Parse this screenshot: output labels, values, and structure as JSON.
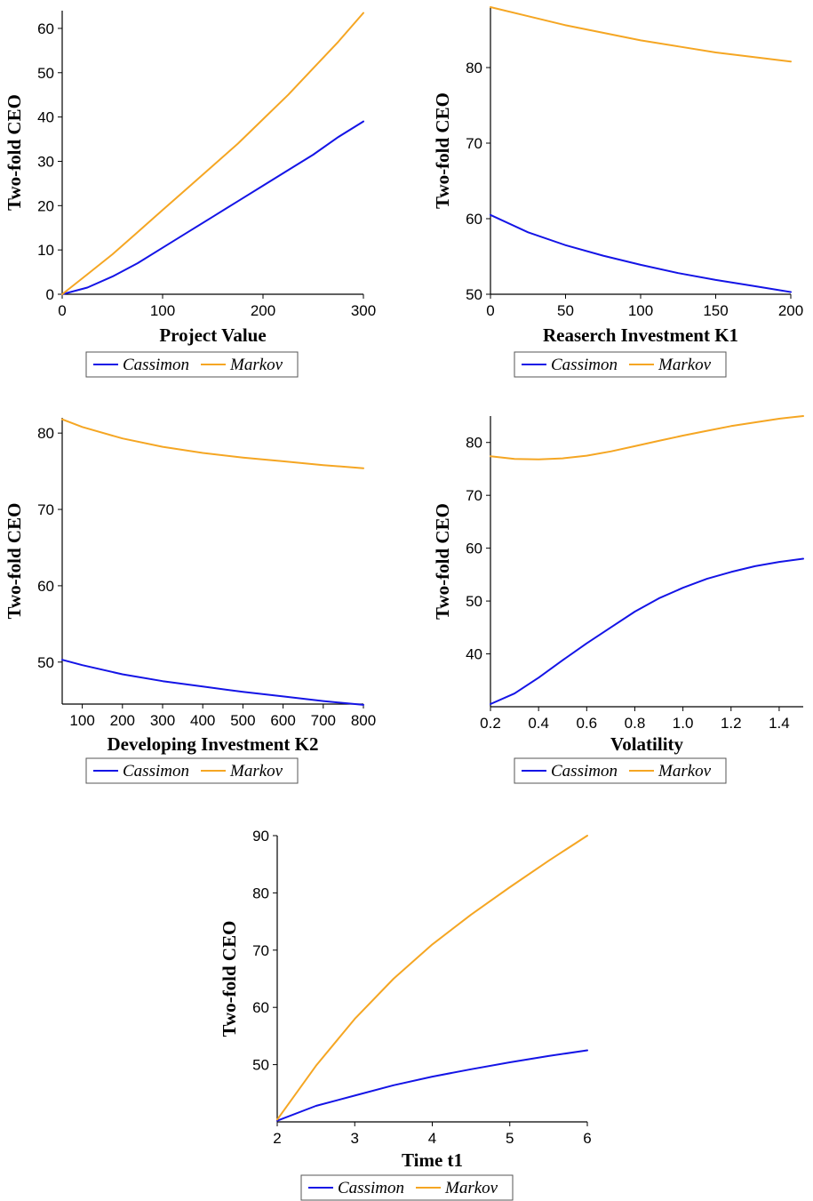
{
  "chart_data": [
    {
      "type": "line",
      "xlabel": "Project Value",
      "ylabel": "Two-fold CEO",
      "xlim": [
        0,
        300
      ],
      "ylim": [
        0,
        64
      ],
      "xticks": [
        0,
        100,
        200,
        300
      ],
      "yticks": [
        0,
        10,
        20,
        30,
        40,
        50,
        60
      ],
      "legend_position": "bottom",
      "series": [
        {
          "name": "Cassimon",
          "color": "#1414e6",
          "x": [
            0,
            25,
            50,
            75,
            100,
            125,
            150,
            175,
            200,
            225,
            250,
            275,
            300
          ],
          "y": [
            0,
            1.5,
            4,
            7,
            10.5,
            14,
            17.5,
            21,
            24.5,
            28,
            31.5,
            35.5,
            39
          ]
        },
        {
          "name": "Markov",
          "color": "#f5a623",
          "x": [
            0,
            25,
            50,
            75,
            100,
            125,
            150,
            175,
            200,
            225,
            250,
            275,
            300
          ],
          "y": [
            0,
            4.5,
            9,
            14,
            19,
            24,
            29,
            34,
            39.5,
            45,
            51,
            57,
            63.5
          ]
        }
      ]
    },
    {
      "type": "line",
      "xlabel": "Reaserch Investment K1",
      "ylabel": "Two-fold CEO",
      "xlim": [
        0,
        200
      ],
      "ylim": [
        50,
        88
      ],
      "xticks": [
        0,
        50,
        100,
        150,
        200
      ],
      "yticks": [
        50,
        60,
        70,
        80
      ],
      "legend_position": "bottom",
      "series": [
        {
          "name": "Cassimon",
          "color": "#1414e6",
          "x": [
            0,
            25,
            50,
            75,
            100,
            125,
            150,
            175,
            200
          ],
          "y": [
            60.5,
            58.2,
            56.5,
            55.1,
            53.9,
            52.8,
            51.9,
            51.1,
            50.3
          ]
        },
        {
          "name": "Markov",
          "color": "#f5a623",
          "x": [
            0,
            25,
            50,
            75,
            100,
            125,
            150,
            175,
            200
          ],
          "y": [
            88,
            86.8,
            85.6,
            84.6,
            83.6,
            82.8,
            82,
            81.4,
            80.8
          ]
        }
      ]
    },
    {
      "type": "line",
      "xlabel": "Developing Investment K2",
      "ylabel": "Two-fold CEO",
      "xlim": [
        50,
        800
      ],
      "ylim": [
        44.5,
        82
      ],
      "xticks": [
        100,
        200,
        300,
        400,
        500,
        600,
        700,
        800
      ],
      "yticks": [
        50,
        60,
        70,
        80
      ],
      "legend_position": "bottom",
      "series": [
        {
          "name": "Cassimon",
          "color": "#1414e6",
          "x": [
            50,
            100,
            200,
            300,
            400,
            500,
            600,
            700,
            800
          ],
          "y": [
            50.3,
            49.6,
            48.4,
            47.5,
            46.8,
            46.1,
            45.5,
            44.9,
            44.4
          ]
        },
        {
          "name": "Markov",
          "color": "#f5a623",
          "x": [
            50,
            100,
            200,
            300,
            400,
            500,
            600,
            700,
            800
          ],
          "y": [
            81.8,
            80.8,
            79.3,
            78.2,
            77.4,
            76.8,
            76.3,
            75.8,
            75.4
          ]
        }
      ]
    },
    {
      "type": "line",
      "xlabel": "Volatility",
      "ylabel": "Two-fold CEO",
      "xlim": [
        0.2,
        1.5
      ],
      "ylim": [
        30,
        85
      ],
      "xticks": [
        0.2,
        0.4,
        0.6,
        0.8,
        1.0,
        1.2,
        1.4
      ],
      "yticks": [
        40,
        50,
        60,
        70,
        80
      ],
      "legend_position": "bottom",
      "series": [
        {
          "name": "Cassimon",
          "color": "#1414e6",
          "x": [
            0.2,
            0.3,
            0.4,
            0.5,
            0.6,
            0.7,
            0.8,
            0.9,
            1.0,
            1.1,
            1.2,
            1.3,
            1.4,
            1.5
          ],
          "y": [
            30.5,
            32.5,
            35.5,
            38.8,
            42,
            45,
            48,
            50.5,
            52.5,
            54.2,
            55.5,
            56.6,
            57.4,
            58
          ]
        },
        {
          "name": "Markov",
          "color": "#f5a623",
          "x": [
            0.2,
            0.3,
            0.4,
            0.5,
            0.6,
            0.7,
            0.8,
            0.9,
            1.0,
            1.1,
            1.2,
            1.3,
            1.4,
            1.5
          ],
          "y": [
            77.4,
            76.9,
            76.8,
            77,
            77.5,
            78.3,
            79.3,
            80.3,
            81.3,
            82.2,
            83.1,
            83.8,
            84.5,
            85
          ]
        }
      ]
    },
    {
      "type": "line",
      "xlabel": "Time t1",
      "ylabel": "Two-fold CEO",
      "xlim": [
        2,
        6
      ],
      "ylim": [
        40,
        90
      ],
      "xticks": [
        2,
        3,
        4,
        5,
        6
      ],
      "yticks": [
        50,
        60,
        70,
        80,
        90
      ],
      "legend_position": "bottom",
      "series": [
        {
          "name": "Cassimon",
          "color": "#1414e6",
          "x": [
            2,
            2.5,
            3,
            3.5,
            4,
            4.5,
            5,
            5.5,
            6
          ],
          "y": [
            40.2,
            42.8,
            44.6,
            46.4,
            47.9,
            49.2,
            50.4,
            51.5,
            52.5
          ]
        },
        {
          "name": "Markov",
          "color": "#f5a623",
          "x": [
            2,
            2.5,
            3,
            3.5,
            4,
            4.5,
            5,
            5.5,
            6
          ],
          "y": [
            40.4,
            49.8,
            58,
            65,
            71,
            76.2,
            81,
            85.6,
            90
          ]
        }
      ]
    }
  ]
}
